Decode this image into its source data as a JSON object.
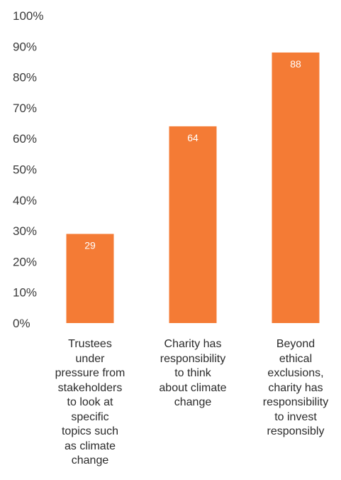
{
  "chart_data": {
    "type": "bar",
    "categories": [
      "Trustees under pressure from stakeholders to look at specific topics such as climate change",
      "Charity has responsibility to think about climate change",
      "Beyond ethical exclusions, charity has responsibility to invest responsibly"
    ],
    "category_lines": [
      [
        "Trustees",
        "under",
        "pressure from",
        "stakeholders",
        "to look at",
        "specific",
        "topics such",
        "as climate",
        "change"
      ],
      [
        "Charity has",
        "responsibility",
        "to think",
        "about climate",
        "change"
      ],
      [
        "Beyond",
        "ethical",
        "exclusions,",
        "charity has",
        "responsibility",
        "to invest",
        "responsibly"
      ]
    ],
    "values": [
      29,
      64,
      88
    ],
    "data_labels": [
      "29",
      "64",
      "88"
    ],
    "y_ticks": [
      "0%",
      "10%",
      "20%",
      "30%",
      "40%",
      "50%",
      "60%",
      "70%",
      "80%",
      "90%",
      "100%"
    ],
    "ylim": [
      0,
      100
    ],
    "title": "",
    "xlabel": "",
    "ylabel": "",
    "grid": false,
    "bar_color": "#F47B35",
    "label_color": "#ffffff"
  }
}
